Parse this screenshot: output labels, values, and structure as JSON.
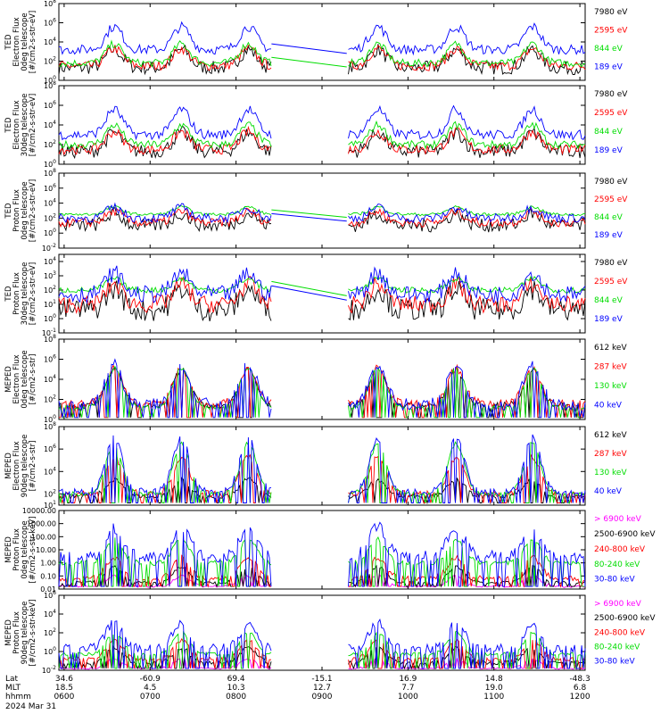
{
  "colors": {
    "blue": "#0000ff",
    "red": "#ff0000",
    "green": "#00dd00",
    "black": "#000000",
    "magenta": "#ff00ff"
  },
  "chart_data": [
    {
      "type": "line",
      "ylabel": [
        "TED",
        "Electron Flux",
        "0deg telescope",
        "[#/cm2-s-str-eV]"
      ],
      "y_scale": "log",
      "y_ticks": [
        {
          "base": "10",
          "exp": "0"
        },
        {
          "base": "10",
          "exp": "2"
        },
        {
          "base": "10",
          "exp": "4"
        },
        {
          "base": "10",
          "exp": "6"
        },
        {
          "base": "10",
          "exp": "8"
        }
      ],
      "ylim_exp": [
        0,
        8
      ],
      "series": [
        {
          "name": "7980 eV",
          "color": "#000000",
          "base": 1.3,
          "boost": 1.9,
          "noise": 0.7
        },
        {
          "name": "2595 eV",
          "color": "#ff0000",
          "base": 1.5,
          "boost": 1.8,
          "noise": 0.5
        },
        {
          "name": "844 eV",
          "color": "#00dd00",
          "base": 1.8,
          "boost": 2.0,
          "noise": 0.4
        },
        {
          "name": "189 eV",
          "color": "#0000ff",
          "base": 3.2,
          "boost": 2.4,
          "noise": 0.5
        }
      ],
      "gap_line": true
    },
    {
      "type": "line",
      "ylabel": [
        "TED",
        "Electron Flux",
        "30deg telescope",
        "[#/cm2-s-str-eV]"
      ],
      "y_scale": "log",
      "y_ticks": [
        {
          "base": "10",
          "exp": "0"
        },
        {
          "base": "10",
          "exp": "2"
        },
        {
          "base": "10",
          "exp": "4"
        },
        {
          "base": "10",
          "exp": "6"
        },
        {
          "base": "10",
          "exp": "8"
        }
      ],
      "ylim_exp": [
        0,
        8
      ],
      "series": [
        {
          "name": "7980 eV",
          "color": "#000000",
          "base": 1.3,
          "boost": 1.9,
          "noise": 0.7
        },
        {
          "name": "2595 eV",
          "color": "#ff0000",
          "base": 1.5,
          "boost": 1.8,
          "noise": 0.5
        },
        {
          "name": "844 eV",
          "color": "#00dd00",
          "base": 2.0,
          "boost": 2.0,
          "noise": 0.4
        },
        {
          "name": "189 eV",
          "color": "#0000ff",
          "base": 3.0,
          "boost": 2.6,
          "noise": 0.5
        }
      ],
      "gap_line": false
    },
    {
      "type": "line",
      "ylabel": [
        "TED",
        "Proton Flux",
        "0deg telescope",
        "[#/cm2-s-str-eV]"
      ],
      "y_scale": "log",
      "y_ticks": [
        {
          "base": "10",
          "exp": "-2"
        },
        {
          "base": "10",
          "exp": "0"
        },
        {
          "base": "10",
          "exp": "2"
        },
        {
          "base": "10",
          "exp": "4"
        },
        {
          "base": "10",
          "exp": "6"
        },
        {
          "base": "10",
          "exp": "8"
        }
      ],
      "ylim_exp": [
        -2,
        8
      ],
      "series": [
        {
          "name": "7980 eV",
          "color": "#000000",
          "base": 1.0,
          "boost": 1.6,
          "noise": 0.9
        },
        {
          "name": "2595 eV",
          "color": "#ff0000",
          "base": 1.4,
          "boost": 1.5,
          "noise": 0.6
        },
        {
          "name": "844 eV",
          "color": "#00dd00",
          "base": 2.5,
          "boost": 1.0,
          "noise": 0.2
        },
        {
          "name": "189 eV",
          "color": "#0000ff",
          "base": 2.0,
          "boost": 1.4,
          "noise": 0.6
        }
      ],
      "gap_line": true
    },
    {
      "type": "line",
      "ylabel": [
        "TED",
        "Proton Flux",
        "30deg telescope",
        "[#/cm2-s-str-eV]"
      ],
      "y_scale": "log",
      "y_ticks": [
        {
          "base": "10",
          "exp": "-1"
        },
        {
          "base": "10",
          "exp": "0"
        },
        {
          "base": "10",
          "exp": "1"
        },
        {
          "base": "10",
          "exp": "2"
        },
        {
          "base": "10",
          "exp": "3"
        },
        {
          "base": "10",
          "exp": "4"
        }
      ],
      "ylim_exp": [
        -1,
        4.5
      ],
      "series": [
        {
          "name": "7980 eV",
          "color": "#000000",
          "base": 0.6,
          "boost": 1.5,
          "noise": 0.8
        },
        {
          "name": "2595 eV",
          "color": "#ff0000",
          "base": 1.0,
          "boost": 1.4,
          "noise": 0.6
        },
        {
          "name": "844 eV",
          "color": "#00dd00",
          "base": 2.0,
          "boost": 0.8,
          "noise": 0.2
        },
        {
          "name": "189 eV",
          "color": "#0000ff",
          "base": 1.7,
          "boost": 1.5,
          "noise": 0.6
        }
      ],
      "gap_line": true
    },
    {
      "type": "line",
      "ylabel": [
        "MEPED",
        "Electron Flux",
        "0deg telescope",
        "[#/cm2-s-str]"
      ],
      "y_scale": "log",
      "y_ticks": [
        {
          "base": "10",
          "exp": "0"
        },
        {
          "base": "10",
          "exp": "2"
        },
        {
          "base": "10",
          "exp": "4"
        },
        {
          "base": "10",
          "exp": "6"
        },
        {
          "base": "10",
          "exp": "8"
        }
      ],
      "ylim_exp": [
        0,
        8
      ],
      "series": [
        {
          "name": "612 keV",
          "color": "#000000",
          "base": 1.4,
          "boost": 3.6,
          "noise": 0.3
        },
        {
          "name": "287 keV",
          "color": "#ff0000",
          "base": 1.6,
          "boost": 3.5,
          "noise": 0.4
        },
        {
          "name": "130 keV",
          "color": "#00dd00",
          "base": 1.2,
          "boost": 3.9,
          "noise": 0.2
        },
        {
          "name": "40 keV",
          "color": "#0000ff",
          "base": 1.5,
          "boost": 4.0,
          "noise": 0.6
        }
      ],
      "gap_line": false
    },
    {
      "type": "line",
      "ylabel": [
        "MEPED",
        "Electron Flux",
        "90deg telescope",
        "[#/cm2-s-str]"
      ],
      "y_scale": "log",
      "y_ticks": [
        {
          "base": "10",
          "exp": "1"
        },
        {
          "base": "10",
          "exp": "2"
        },
        {
          "base": "10",
          "exp": "4"
        },
        {
          "base": "10",
          "exp": "6"
        },
        {
          "base": "10",
          "exp": "8"
        }
      ],
      "ylim_exp": [
        1,
        8
      ],
      "series": [
        {
          "name": "612 keV",
          "color": "#000000",
          "base": 1.8,
          "boost": 1.5,
          "noise": 0.2
        },
        {
          "name": "287 keV",
          "color": "#ff0000",
          "base": 2.0,
          "boost": 3.3,
          "noise": 0.3
        },
        {
          "name": "130 keV",
          "color": "#00dd00",
          "base": 2.0,
          "boost": 4.5,
          "noise": 0.2
        },
        {
          "name": "40 keV",
          "color": "#0000ff",
          "base": 2.2,
          "boost": 4.8,
          "noise": 0.3
        }
      ],
      "gap_line": false
    },
    {
      "type": "line",
      "ylabel": [
        "MEPED",
        "Proton Flux",
        "0deg telescope",
        "[#/cm2-s-str-keV]"
      ],
      "y_scale": "log",
      "y_ticks_text": [
        "10000.00",
        "1000.00",
        "100.00",
        "10.00",
        "1.00",
        "0.10",
        "0.01"
      ],
      "y_ticks": [
        {
          "base": "10000.00",
          "exp": ""
        },
        {
          "base": "1000.00",
          "exp": ""
        },
        {
          "base": "100.00",
          "exp": ""
        },
        {
          "base": "10.00",
          "exp": ""
        },
        {
          "base": "1.00",
          "exp": ""
        },
        {
          "base": "0.10",
          "exp": ""
        },
        {
          "base": "0.01",
          "exp": ""
        }
      ],
      "ylim_exp": [
        -2,
        4
      ],
      "series": [
        {
          "name": "> 6900 keV",
          "color": "#ff00ff",
          "base": -1.8,
          "boost": 0.8,
          "noise": 0.1
        },
        {
          "name": "2500-6900 keV",
          "color": "#000000",
          "base": -1.5,
          "boost": 1.2,
          "noise": 0.1
        },
        {
          "name": "240-800 keV",
          "color": "#ff0000",
          "base": -1.2,
          "boost": 1.6,
          "noise": 0.2
        },
        {
          "name": "80-240 keV",
          "color": "#00dd00",
          "base": 0.0,
          "boost": 1.8,
          "noise": 0.2
        },
        {
          "name": "30-80 keV",
          "color": "#0000ff",
          "base": 0.5,
          "boost": 2.2,
          "noise": 0.5
        }
      ],
      "gap_line": false
    },
    {
      "type": "line",
      "ylabel": [
        "MEPED",
        "Proton Flux",
        "90deg telescope",
        "[#/cm2-s-str-keV]"
      ],
      "y_scale": "log",
      "y_ticks": [
        {
          "base": "10",
          "exp": "-2"
        },
        {
          "base": "10",
          "exp": "0"
        },
        {
          "base": "10",
          "exp": "2"
        },
        {
          "base": "10",
          "exp": "4"
        },
        {
          "base": "10",
          "exp": "6"
        }
      ],
      "ylim_exp": [
        -2,
        6
      ],
      "series": [
        {
          "name": "> 6900 keV",
          "color": "#ff00ff",
          "base": -1.8,
          "boost": 1.0,
          "noise": 0.1
        },
        {
          "name": "2500-6900 keV",
          "color": "#000000",
          "base": -1.2,
          "boost": 1.6,
          "noise": 0.2
        },
        {
          "name": "240-800 keV",
          "color": "#ff0000",
          "base": -0.8,
          "boost": 2.0,
          "noise": 0.2
        },
        {
          "name": "80-240 keV",
          "color": "#00dd00",
          "base": -0.3,
          "boost": 2.3,
          "noise": 0.2
        },
        {
          "name": "30-80 keV",
          "color": "#0000ff",
          "base": 0.3,
          "boost": 2.8,
          "noise": 0.5
        }
      ],
      "gap_line": false
    }
  ],
  "x_axis": {
    "row_labels": [
      "Lat",
      "MLT",
      "hhmm",
      "2024 Mar 31"
    ],
    "ticks": [
      {
        "lat": "34.6",
        "mlt": "18.5",
        "hhmm": "0600"
      },
      {
        "lat": "-60.9",
        "mlt": "4.5",
        "hhmm": "0700"
      },
      {
        "lat": "69.4",
        "mlt": "10.3",
        "hhmm": "0800"
      },
      {
        "lat": "-15.1",
        "mlt": "12.7",
        "hhmm": "0900"
      },
      {
        "lat": "16.9",
        "mlt": "7.7",
        "hhmm": "1000"
      },
      {
        "lat": "14.8",
        "mlt": "19.0",
        "hhmm": "1100"
      },
      {
        "lat": "-48.3",
        "mlt": "6.8",
        "hhmm": "1200"
      }
    ]
  },
  "data_gap": {
    "start_frac": 0.404,
    "end_frac": 0.547
  },
  "pass_centers": [
    0.105,
    0.233,
    0.36,
    0.606,
    0.755,
    0.9
  ]
}
